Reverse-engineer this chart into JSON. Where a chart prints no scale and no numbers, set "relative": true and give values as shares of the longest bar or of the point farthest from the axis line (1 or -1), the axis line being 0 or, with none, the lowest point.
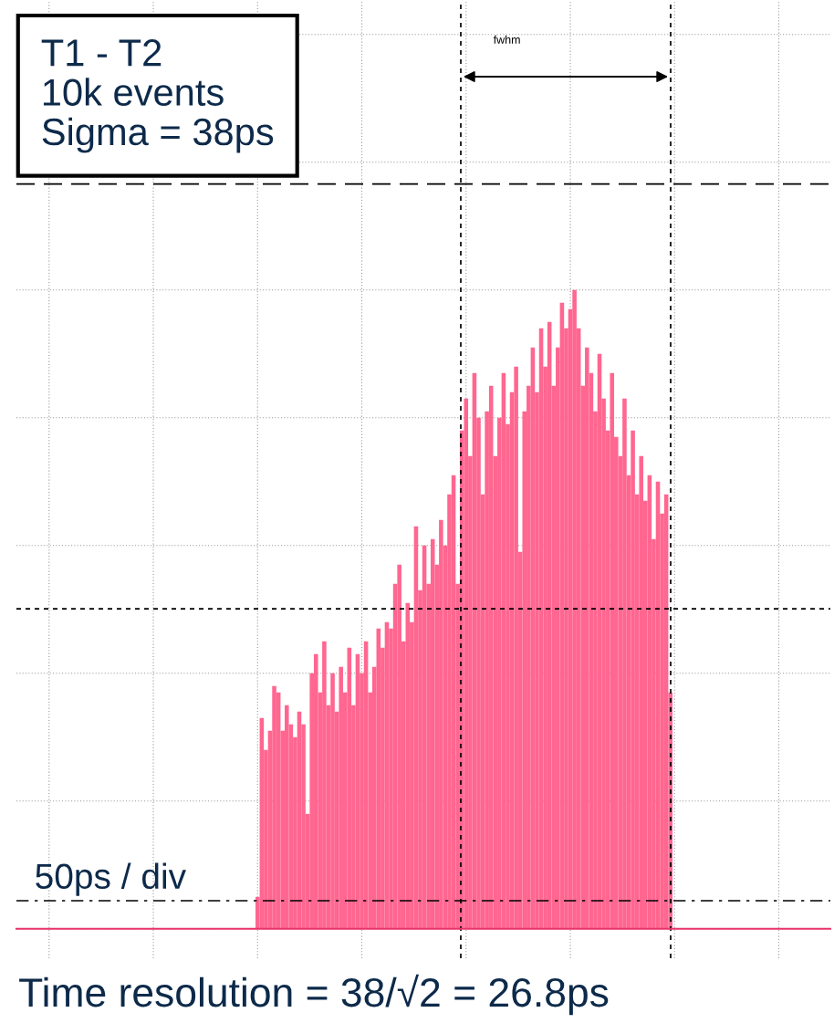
{
  "chart_data": {
    "type": "bar",
    "relative": true,
    "categories": [
      null,
      null,
      null,
      null,
      null,
      null,
      null,
      null,
      null,
      null,
      null,
      null,
      null,
      null,
      null,
      null,
      null,
      null,
      null,
      null,
      null,
      null,
      null,
      null,
      null,
      null,
      null,
      null,
      null,
      null,
      null,
      null,
      null,
      null,
      null,
      null,
      null,
      null,
      null,
      null,
      null,
      null,
      null,
      null,
      null,
      null,
      null,
      null,
      null,
      null,
      null,
      null,
      null,
      null,
      null,
      null,
      null,
      null,
      null,
      null,
      null,
      null,
      null,
      null,
      null,
      null,
      null,
      null,
      null,
      null,
      null,
      null,
      null,
      null,
      null,
      null,
      null,
      null,
      null,
      null,
      null,
      null,
      null,
      null,
      null,
      null,
      null,
      null,
      null,
      null,
      null,
      null,
      null,
      null,
      null,
      null,
      null,
      null,
      null,
      null
    ],
    "values": [
      0.05,
      0.33,
      0.28,
      0.31,
      0.38,
      0.37,
      0.31,
      0.35,
      0.32,
      0.3,
      0.34,
      0.32,
      0.18,
      0.4,
      0.43,
      0.37,
      0.45,
      0.35,
      0.4,
      0.34,
      0.41,
      0.37,
      0.44,
      0.35,
      0.43,
      0.4,
      0.45,
      0.37,
      0.41,
      0.47,
      0.44,
      0.48,
      0.47,
      0.54,
      0.57,
      0.45,
      0.51,
      0.48,
      0.63,
      0.53,
      0.6,
      0.54,
      0.61,
      0.57,
      0.64,
      0.6,
      0.68,
      0.71,
      0.54,
      0.78,
      0.83,
      0.74,
      0.87,
      0.8,
      0.68,
      0.81,
      0.85,
      0.74,
      0.8,
      0.87,
      0.79,
      0.84,
      0.88,
      0.59,
      0.81,
      0.85,
      0.91,
      0.84,
      0.94,
      0.88,
      0.95,
      0.85,
      0.91,
      0.98,
      0.94,
      0.97,
      1.0,
      0.94,
      0.85,
      0.91,
      0.87,
      0.81,
      0.9,
      0.83,
      0.78,
      0.87,
      0.77,
      0.74,
      0.83,
      0.71,
      0.78,
      0.68,
      0.74,
      0.67,
      0.71,
      0.61,
      0.7,
      0.65,
      0.68,
      0.37
    ],
    "color": "#ff6690",
    "ref_lines": [
      {
        "axis": "y",
        "value": 1.166,
        "color": "#000000",
        "line_style": "dashed"
      },
      {
        "axis": "y",
        "value": 0.501,
        "color": "#000000",
        "line_style": "dotted"
      },
      {
        "axis": "y",
        "value": 0.044,
        "color": "#000000",
        "line_style": "dashdot"
      }
    ],
    "annotations": [
      "fwhm",
      "T1 - T2\n10k events\nSigma = 38ps",
      "50ps / div",
      "Time resolution = 38/√2 = 26.8ps"
    ],
    "grid": true,
    "tick_labels": false
  }
}
